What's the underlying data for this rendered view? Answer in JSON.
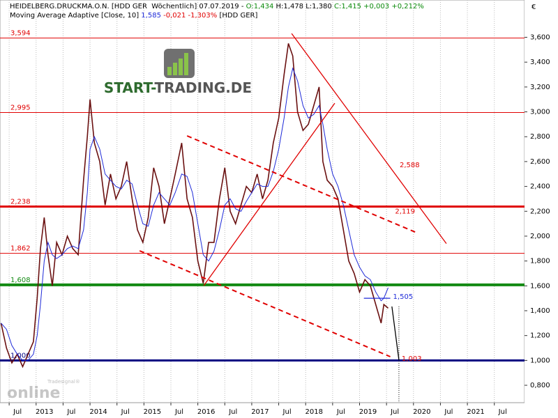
{
  "chart_data": {
    "type": "line",
    "header": [
      [
        {
          "text": "HEIDELBERG.DRUCKMA.O.N. [HDD GER  Wöchentlich] 07.07.2019 - ",
          "color": "#000000"
        },
        {
          "text": "O:1,434",
          "color": "#0a8a0a"
        },
        {
          "text": " H:1,478 L:1,380 ",
          "color": "#000000"
        },
        {
          "text": "C:1,415 +0,003 +0,212%",
          "color": "#0a8a0a"
        }
      ],
      [
        {
          "text": "Moving Average Adaptive [Close, 10] ",
          "color": "#000000"
        },
        {
          "text": "1,585",
          "color": "#1e2ad8"
        },
        {
          "text": " -0,021 -1,303% ",
          "color": "#e00000"
        },
        {
          "text": "[HDD GER]",
          "color": "#000000"
        }
      ]
    ],
    "currency": "€",
    "logo": [
      "START-",
      "TRADING.DE"
    ],
    "watermark": [
      "Tradesignal®",
      "online"
    ],
    "xlim": [
      2012.33,
      2022.06
    ],
    "ylim": [
      0.66,
      3.9
    ],
    "grid": true,
    "xticks": [
      {
        "value": 2012.5,
        "label": "Jul"
      },
      {
        "value": 2013,
        "label": "2013"
      },
      {
        "value": 2013.5,
        "label": "Jul"
      },
      {
        "value": 2014,
        "label": "2014"
      },
      {
        "value": 2014.5,
        "label": "Jul"
      },
      {
        "value": 2015,
        "label": "2015"
      },
      {
        "value": 2015.5,
        "label": "Jul"
      },
      {
        "value": 2016,
        "label": "2016"
      },
      {
        "value": 2016.5,
        "label": "Jul"
      },
      {
        "value": 2017,
        "label": "2017"
      },
      {
        "value": 2017.5,
        "label": "Jul"
      },
      {
        "value": 2018,
        "label": "2018"
      },
      {
        "value": 2018.5,
        "label": "Jul"
      },
      {
        "value": 2019,
        "label": "2019"
      },
      {
        "value": 2019.5,
        "label": "Jul"
      },
      {
        "value": 2020,
        "label": "2020"
      },
      {
        "value": 2020.5,
        "label": "Jul"
      },
      {
        "value": 2021,
        "label": "2021"
      },
      {
        "value": 2021.5,
        "label": "Jul"
      }
    ],
    "yticks": [
      {
        "value": 0.8,
        "label": "0,800"
      },
      {
        "value": 1.0,
        "label": "1,000"
      },
      {
        "value": 1.2,
        "label": "1,200"
      },
      {
        "value": 1.4,
        "label": "1,400"
      },
      {
        "value": 1.6,
        "label": "1,600"
      },
      {
        "value": 1.8,
        "label": "1,800"
      },
      {
        "value": 2.0,
        "label": "2,000"
      },
      {
        "value": 2.2,
        "label": "2,200"
      },
      {
        "value": 2.4,
        "label": "2,400"
      },
      {
        "value": 2.6,
        "label": "2,600"
      },
      {
        "value": 2.8,
        "label": "2,800"
      },
      {
        "value": 3.0,
        "label": "3,000"
      },
      {
        "value": 3.2,
        "label": "3,200"
      },
      {
        "value": 3.4,
        "label": "3,400"
      },
      {
        "value": 3.6,
        "label": "3,600"
      }
    ],
    "x": [
      2012.35,
      2012.45,
      2012.55,
      2012.65,
      2012.75,
      2012.85,
      2012.95,
      2013.02,
      2013.08,
      2013.15,
      2013.22,
      2013.3,
      2013.38,
      2013.48,
      2013.58,
      2013.68,
      2013.78,
      2013.88,
      2013.95,
      2014.0,
      2014.08,
      2014.18,
      2014.28,
      2014.38,
      2014.48,
      2014.58,
      2014.68,
      2014.78,
      2014.88,
      2014.98,
      2015.08,
      2015.18,
      2015.28,
      2015.38,
      2015.48,
      2015.58,
      2015.7,
      2015.8,
      2015.9,
      2016.0,
      2016.1,
      2016.2,
      2016.3,
      2016.4,
      2016.5,
      2016.6,
      2016.7,
      2016.8,
      2016.9,
      2017.0,
      2017.1,
      2017.2,
      2017.3,
      2017.4,
      2017.5,
      2017.6,
      2017.68,
      2017.76,
      2017.85,
      2017.95,
      2018.05,
      2018.15,
      2018.25,
      2018.32,
      2018.4,
      2018.5,
      2018.6,
      2018.7,
      2018.8,
      2018.9,
      2019.0,
      2019.1,
      2019.2,
      2019.3,
      2019.4,
      2019.45,
      2019.53
    ],
    "series": [
      {
        "color": "#6a1010",
        "values": [
          1.3,
          1.1,
          0.98,
          1.05,
          0.95,
          1.05,
          1.15,
          1.5,
          1.9,
          2.15,
          1.85,
          1.6,
          1.95,
          1.85,
          2.0,
          1.9,
          1.85,
          2.45,
          2.8,
          3.1,
          2.75,
          2.6,
          2.25,
          2.5,
          2.3,
          2.4,
          2.6,
          2.3,
          2.05,
          1.95,
          2.15,
          2.55,
          2.4,
          2.1,
          2.3,
          2.5,
          2.75,
          2.3,
          2.15,
          1.8,
          1.62,
          1.95,
          1.95,
          2.3,
          2.55,
          2.2,
          2.1,
          2.25,
          2.4,
          2.35,
          2.5,
          2.3,
          2.45,
          2.75,
          2.95,
          3.3,
          3.55,
          3.45,
          3.0,
          2.85,
          2.9,
          3.05,
          3.2,
          2.6,
          2.45,
          2.4,
          2.3,
          2.05,
          1.8,
          1.7,
          1.55,
          1.65,
          1.6,
          1.45,
          1.3,
          1.45,
          1.42
        ]
      },
      {
        "color": "#1e2ad8",
        "values": [
          1.3,
          1.25,
          1.12,
          1.05,
          1.0,
          1.0,
          1.05,
          1.2,
          1.45,
          1.8,
          1.95,
          1.85,
          1.82,
          1.85,
          1.9,
          1.92,
          1.9,
          2.05,
          2.35,
          2.7,
          2.8,
          2.7,
          2.5,
          2.45,
          2.4,
          2.38,
          2.45,
          2.42,
          2.25,
          2.1,
          2.08,
          2.25,
          2.35,
          2.3,
          2.25,
          2.35,
          2.5,
          2.48,
          2.35,
          2.1,
          1.85,
          1.8,
          1.88,
          2.05,
          2.25,
          2.3,
          2.22,
          2.2,
          2.28,
          2.35,
          2.42,
          2.4,
          2.4,
          2.52,
          2.7,
          2.95,
          3.2,
          3.35,
          3.25,
          3.05,
          2.95,
          2.98,
          3.05,
          2.9,
          2.7,
          2.5,
          2.4,
          2.25,
          2.05,
          1.85,
          1.75,
          1.68,
          1.65,
          1.55,
          1.48,
          1.5,
          1.585
        ]
      }
    ],
    "levels": [
      {
        "value": 3.594,
        "label": "3,594",
        "color": "#e00000",
        "width": 1
      },
      {
        "value": 2.995,
        "label": "2,995",
        "color": "#e00000",
        "width": 1
      },
      {
        "value": 2.238,
        "label": "2,238",
        "color": "#e00000",
        "width": 3
      },
      {
        "value": 1.862,
        "label": "1,862",
        "color": "#e00000",
        "width": 1
      },
      {
        "value": 1.608,
        "label": "1,608",
        "color": "#138a13",
        "width": 4
      },
      {
        "value": 1.0,
        "label": "1,000",
        "color": "#000080",
        "width": 3
      }
    ],
    "trendlines": [
      {
        "start": [
          2017.74,
          3.63
        ],
        "end": [
          2020.61,
          1.94
        ],
        "color": "#e00000",
        "dash": false,
        "label": "2,588"
      },
      {
        "start": [
          2015.8,
          2.807
        ],
        "end": [
          2020.03,
          2.033
        ],
        "color": "#e00000",
        "dash": true,
        "label": "2,119"
      },
      {
        "start": [
          2014.92,
          1.882
        ],
        "end": [
          2019.57,
          1.03
        ],
        "color": "#e00000",
        "dash": true
      },
      {
        "start": [
          2016.11,
          1.602
        ],
        "end": [
          2018.54,
          3.07
        ],
        "color": "#e00000",
        "dash": false
      },
      {
        "start": [
          2019.08,
          1.5
        ],
        "end": [
          2019.57,
          1.5
        ],
        "color": "#1e2ad8",
        "dash": false,
        "label": "1,505"
      },
      {
        "start": [
          2019.6,
          1.434
        ],
        "end": [
          2019.73,
          1.003
        ],
        "color": "#000000",
        "dash": false,
        "label": "1,003"
      }
    ]
  }
}
